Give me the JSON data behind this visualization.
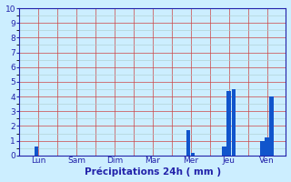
{
  "categories": [
    "Lun",
    "Sam",
    "Dim",
    "Mar",
    "Mer",
    "Jeu",
    "Ven"
  ],
  "bar_values": [
    [
      0.6,
      0.0
    ],
    [
      0.0,
      0.0
    ],
    [
      0.0,
      0.0
    ],
    [
      0.0,
      0.0
    ],
    [
      1.7,
      0.15
    ],
    [
      0.6,
      4.4,
      4.5
    ],
    [
      1.0,
      1.2,
      4.0
    ]
  ],
  "bar_color": "#1155cc",
  "background_color": "#cceeff",
  "grid_color_major": "#cc4444",
  "grid_color_minor": "#aacccc",
  "axis_color": "#2222aa",
  "text_color": "#2222aa",
  "xlabel": "Précipitations 24h ( mm )",
  "ylim": [
    0,
    10
  ],
  "yticks": [
    0,
    1,
    2,
    3,
    4,
    5,
    6,
    7,
    8,
    9,
    10
  ],
  "label_fontsize": 7.5,
  "tick_fontsize": 6.5
}
